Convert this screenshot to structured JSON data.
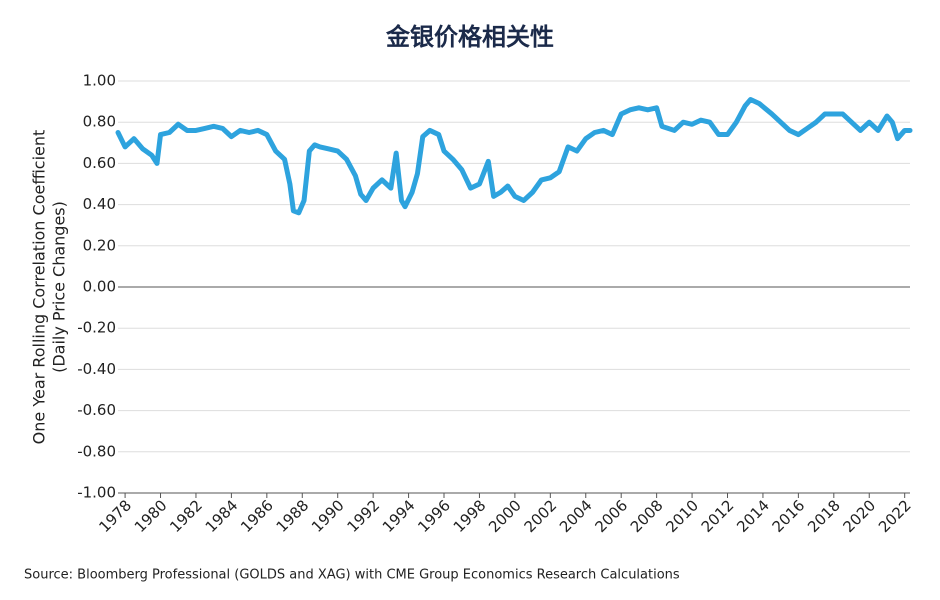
{
  "chart_data": {
    "type": "line",
    "title": "金银价格相关性",
    "ylabel": [
      "One Year Rolling Correlation Coefficient",
      "(Daily Price Changes)"
    ],
    "source": "Source: Bloomberg Professional (GOLDS and XAG) with CME Group Economics Research Calculations",
    "color": "#2ea3de",
    "x": [
      1977.6,
      1978.0,
      1978.5,
      1979.0,
      1979.5,
      1979.8,
      1980.0,
      1980.5,
      1981.0,
      1981.5,
      1982.0,
      1982.5,
      1983.0,
      1983.5,
      1984.0,
      1984.5,
      1985.0,
      1985.5,
      1986.0,
      1986.5,
      1987.0,
      1987.3,
      1987.5,
      1987.8,
      1988.1,
      1988.4,
      1988.7,
      1989.0,
      1989.5,
      1990.0,
      1990.5,
      1991.0,
      1991.3,
      1991.6,
      1992.0,
      1992.5,
      1993.0,
      1993.3,
      1993.6,
      1993.8,
      1994.2,
      1994.5,
      1994.8,
      1995.2,
      1995.7,
      1996.0,
      1996.5,
      1997.0,
      1997.5,
      1998.0,
      1998.5,
      1998.8,
      1999.2,
      1999.6,
      2000.0,
      2000.5,
      2001.0,
      2001.5,
      2002.0,
      2002.5,
      2003.0,
      2003.5,
      2004.0,
      2004.5,
      2005.0,
      2005.5,
      2006.0,
      2006.5,
      2007.0,
      2007.5,
      2008.0,
      2008.3,
      2009.0,
      2009.5,
      2010.0,
      2010.5,
      2011.0,
      2011.5,
      2012.0,
      2012.5,
      2013.0,
      2013.3,
      2013.8,
      2014.5,
      2015.0,
      2015.5,
      2016.0,
      2016.5,
      2017.0,
      2017.5,
      2018.0,
      2018.5,
      2019.0,
      2019.5,
      2020.0,
      2020.5,
      2021.0,
      2021.3,
      2021.6,
      2022.0,
      2022.3
    ],
    "values": [
      0.75,
      0.68,
      0.72,
      0.67,
      0.64,
      0.6,
      0.74,
      0.75,
      0.79,
      0.76,
      0.76,
      0.77,
      0.78,
      0.77,
      0.73,
      0.76,
      0.75,
      0.76,
      0.74,
      0.66,
      0.62,
      0.5,
      0.37,
      0.36,
      0.42,
      0.66,
      0.69,
      0.68,
      0.67,
      0.66,
      0.62,
      0.54,
      0.45,
      0.42,
      0.48,
      0.52,
      0.48,
      0.65,
      0.42,
      0.39,
      0.46,
      0.55,
      0.73,
      0.76,
      0.74,
      0.66,
      0.62,
      0.57,
      0.48,
      0.5,
      0.61,
      0.44,
      0.46,
      0.49,
      0.44,
      0.42,
      0.46,
      0.52,
      0.53,
      0.56,
      0.68,
      0.66,
      0.72,
      0.75,
      0.76,
      0.74,
      0.84,
      0.86,
      0.87,
      0.86,
      0.87,
      0.78,
      0.76,
      0.8,
      0.79,
      0.81,
      0.8,
      0.74,
      0.74,
      0.8,
      0.88,
      0.91,
      0.89,
      0.84,
      0.8,
      0.76,
      0.74,
      0.77,
      0.8,
      0.84,
      0.84,
      0.84,
      0.8,
      0.76,
      0.8,
      0.76,
      0.83,
      0.8,
      0.72,
      0.76,
      0.76
    ],
    "xlim": [
      1977.6,
      2022.3
    ],
    "xticks": [
      1978,
      1980,
      1982,
      1984,
      1986,
      1988,
      1990,
      1992,
      1994,
      1996,
      1998,
      2000,
      2002,
      2004,
      2006,
      2008,
      2010,
      2012,
      2014,
      2016,
      2018,
      2020,
      2022
    ],
    "ylim": [
      -1,
      1
    ],
    "yticks": [
      {
        "value": 1,
        "label": "1.00"
      },
      {
        "value": 0.8,
        "label": "0.80"
      },
      {
        "value": 0.6,
        "label": "0.60"
      },
      {
        "value": 0.4,
        "label": "0.40"
      },
      {
        "value": 0.2,
        "label": "0.20"
      },
      {
        "value": 0,
        "label": "0.00"
      },
      {
        "value": -0.2,
        "label": "-0.20"
      },
      {
        "value": -0.4,
        "label": "-0.40"
      },
      {
        "value": -0.6,
        "label": "-0.60"
      },
      {
        "value": -0.8,
        "label": "-0.80"
      },
      {
        "value": -1,
        "label": "-1.00"
      }
    ],
    "grid": true
  }
}
